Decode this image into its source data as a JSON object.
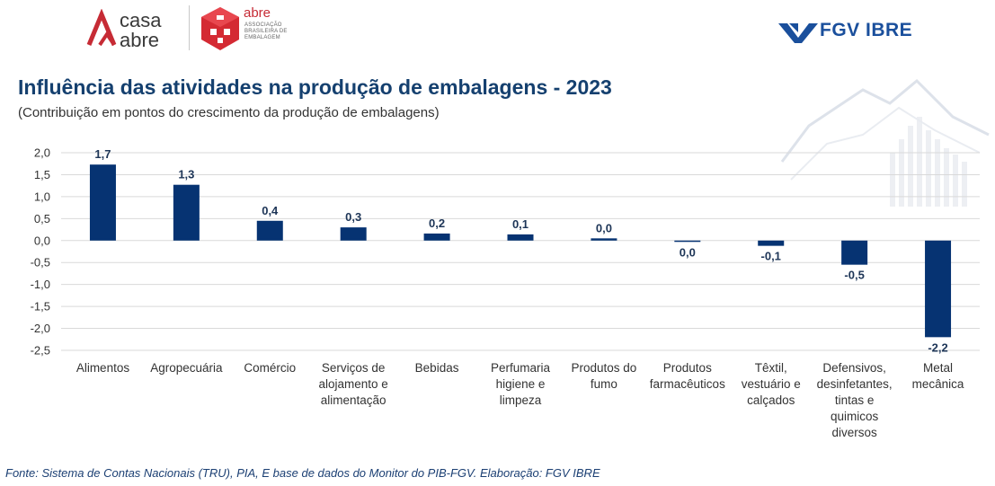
{
  "header": {
    "casa_abre_logo_line1": "casa",
    "casa_abre_logo_line2": "abre",
    "abre_logo": "abre",
    "abre_subtitle": "ASSOCIAÇÃO BRASILEIRA DE EMBALAGEM",
    "fgv_logo": "FGV IBRE"
  },
  "footer": {
    "source": "Fonte: Sistema de Contas Nacionais (TRU), PIA, E base de dados do Monitor do PIB-FGV. Elaboração: FGV IBRE"
  },
  "chart_data": {
    "type": "bar",
    "title": "Influência das atividades na produção de embalagens - 2023",
    "subtitle": "(Contribuição em pontos do crescimento da produção de embalagens)",
    "categories": [
      "Alimentos",
      "Agropecuária",
      "Comércio",
      "Serviços de alojamento e alimentação",
      "Bebidas",
      "Perfumaria higiene e limpeza",
      "Produtos do fumo",
      "Produtos farmacêuticos",
      "Têxtil, vestuário e calçados",
      "Defensivos, desinfetantes, tintas e quimicos diversos",
      "Metal mecânica"
    ],
    "category_lines": [
      [
        "Alimentos"
      ],
      [
        "Agropecuária"
      ],
      [
        "Comércio"
      ],
      [
        "Serviços de",
        "alojamento e",
        "alimentação"
      ],
      [
        "Bebidas"
      ],
      [
        "Perfumaria",
        "higiene e",
        "limpeza"
      ],
      [
        "Produtos do",
        "fumo"
      ],
      [
        "Produtos",
        "farmacêuticos"
      ],
      [
        "Têxtil,",
        "vestuário e",
        "calçados"
      ],
      [
        "Defensivos,",
        "desinfetantes,",
        "tintas e",
        "quimicos",
        "diversos"
      ],
      [
        "Metal",
        "mecânica"
      ]
    ],
    "values": [
      1.73,
      1.27,
      0.45,
      0.3,
      0.16,
      0.14,
      0.05,
      -0.03,
      -0.12,
      -0.55,
      -2.2
    ],
    "data_labels": [
      "1,7",
      "1,3",
      "0,4",
      "0,3",
      "0,2",
      "0,1",
      "0,0",
      "0,0",
      "-0,1",
      "-0,5",
      "-2,2"
    ],
    "yticks": [
      2.0,
      1.5,
      1.0,
      0.5,
      0.0,
      -0.5,
      -1.0,
      -1.5,
      -2.0,
      -2.5
    ],
    "ytick_labels": [
      "2,0",
      "1,5",
      "1,0",
      "0,5",
      "0,0",
      "-0,5",
      "-1,0",
      "-1,5",
      "-2,0",
      "-2,5"
    ],
    "ylim": [
      -2.5,
      2.0
    ],
    "grid": true,
    "legend": "none",
    "bar_color": "#063372"
  }
}
